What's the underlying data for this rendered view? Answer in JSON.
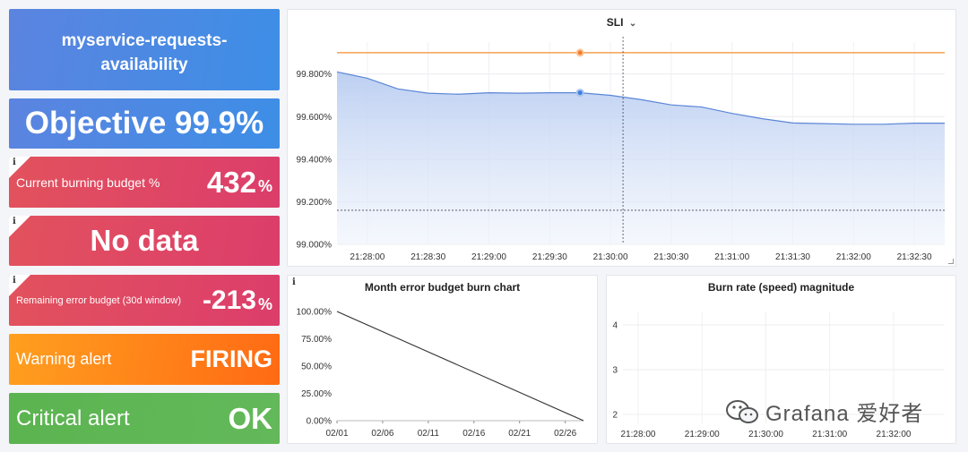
{
  "tiles": {
    "service_name": "myservice-requests-availability",
    "objective": "Objective 99.9%",
    "burning": {
      "label": "Current burning budget %",
      "value": "432",
      "unit": "%"
    },
    "no_data": "No data",
    "remaining": {
      "label": "Remaining error budget (30d window)",
      "value": "-213",
      "unit": "%"
    },
    "warning": {
      "label": "Warning alert",
      "value": "FIRING"
    },
    "critical": {
      "label": "Critical alert",
      "value": "OK"
    },
    "info_symbol": "i"
  },
  "colors": {
    "blue": "#4a8ae6",
    "red": "#e04760",
    "orange": "#ff8a1a",
    "green": "#5fb655",
    "sli_line": "#5b86d6",
    "threshold": "#f5a154"
  },
  "sli_panel": {
    "title": "SLI",
    "title_icon": "chevron-down-icon",
    "chart_data": {
      "type": "area",
      "x": [
        "21:27:45",
        "21:28:00",
        "21:28:15",
        "21:28:30",
        "21:28:45",
        "21:29:00",
        "21:29:15",
        "21:29:30",
        "21:29:45",
        "21:30:00",
        "21:30:15",
        "21:30:30",
        "21:30:45",
        "21:31:00",
        "21:31:15",
        "21:31:30",
        "21:31:45",
        "21:32:00",
        "21:32:15",
        "21:32:30",
        "21:32:45"
      ],
      "series": [
        {
          "values": [
            99.81,
            99.78,
            99.73,
            99.71,
            99.705,
            99.712,
            99.71,
            99.712,
            99.712,
            99.7,
            99.68,
            99.655,
            99.645,
            99.615,
            99.59,
            99.57,
            99.567,
            99.564,
            99.564,
            99.569,
            99.569
          ]
        },
        {
          "values": [
            99.9,
            99.9,
            99.9,
            99.9,
            99.9,
            99.9,
            99.9,
            99.9,
            99.9,
            99.9,
            99.9,
            99.9,
            99.9,
            99.9,
            99.9,
            99.9,
            99.9,
            99.9,
            99.9,
            99.9,
            99.9
          ]
        }
      ],
      "x_ticks": [
        "21:28:00",
        "21:28:30",
        "21:29:00",
        "21:29:30",
        "21:30:00",
        "21:30:30",
        "21:31:00",
        "21:31:30",
        "21:32:00",
        "21:32:30"
      ],
      "y_ticks": [
        "99.000%",
        "99.200%",
        "99.400%",
        "99.600%",
        "99.800%"
      ],
      "ylim": [
        99.0,
        99.95
      ],
      "hover": {
        "x": "21:30:00",
        "y": 99.16
      },
      "grid": true
    }
  },
  "burn_panel": {
    "title": "Month error budget burn chart",
    "chart_data": {
      "type": "line",
      "x": [
        "02/01",
        "02/28"
      ],
      "series": [
        {
          "values": [
            100,
            0
          ]
        }
      ],
      "x_ticks": [
        "02/01",
        "02/06",
        "02/11",
        "02/16",
        "02/21",
        "02/26"
      ],
      "y_ticks": [
        "0.00%",
        "25.00%",
        "50.00%",
        "75.00%",
        "100.00%"
      ],
      "ylim": [
        0,
        100
      ],
      "grid": false
    }
  },
  "rate_panel": {
    "title": "Burn rate (speed) magnitude",
    "chart_data": {
      "type": "line",
      "series": [],
      "x_ticks": [
        "21:28:00",
        "21:29:00",
        "21:30:00",
        "21:31:00",
        "21:32:00"
      ],
      "y_ticks": [
        "2",
        "3",
        "4"
      ],
      "ylim": [
        1.8,
        4.3
      ],
      "grid": true
    }
  },
  "watermark": {
    "text": "Grafana 爱好者",
    "icon": "wechat-icon"
  }
}
